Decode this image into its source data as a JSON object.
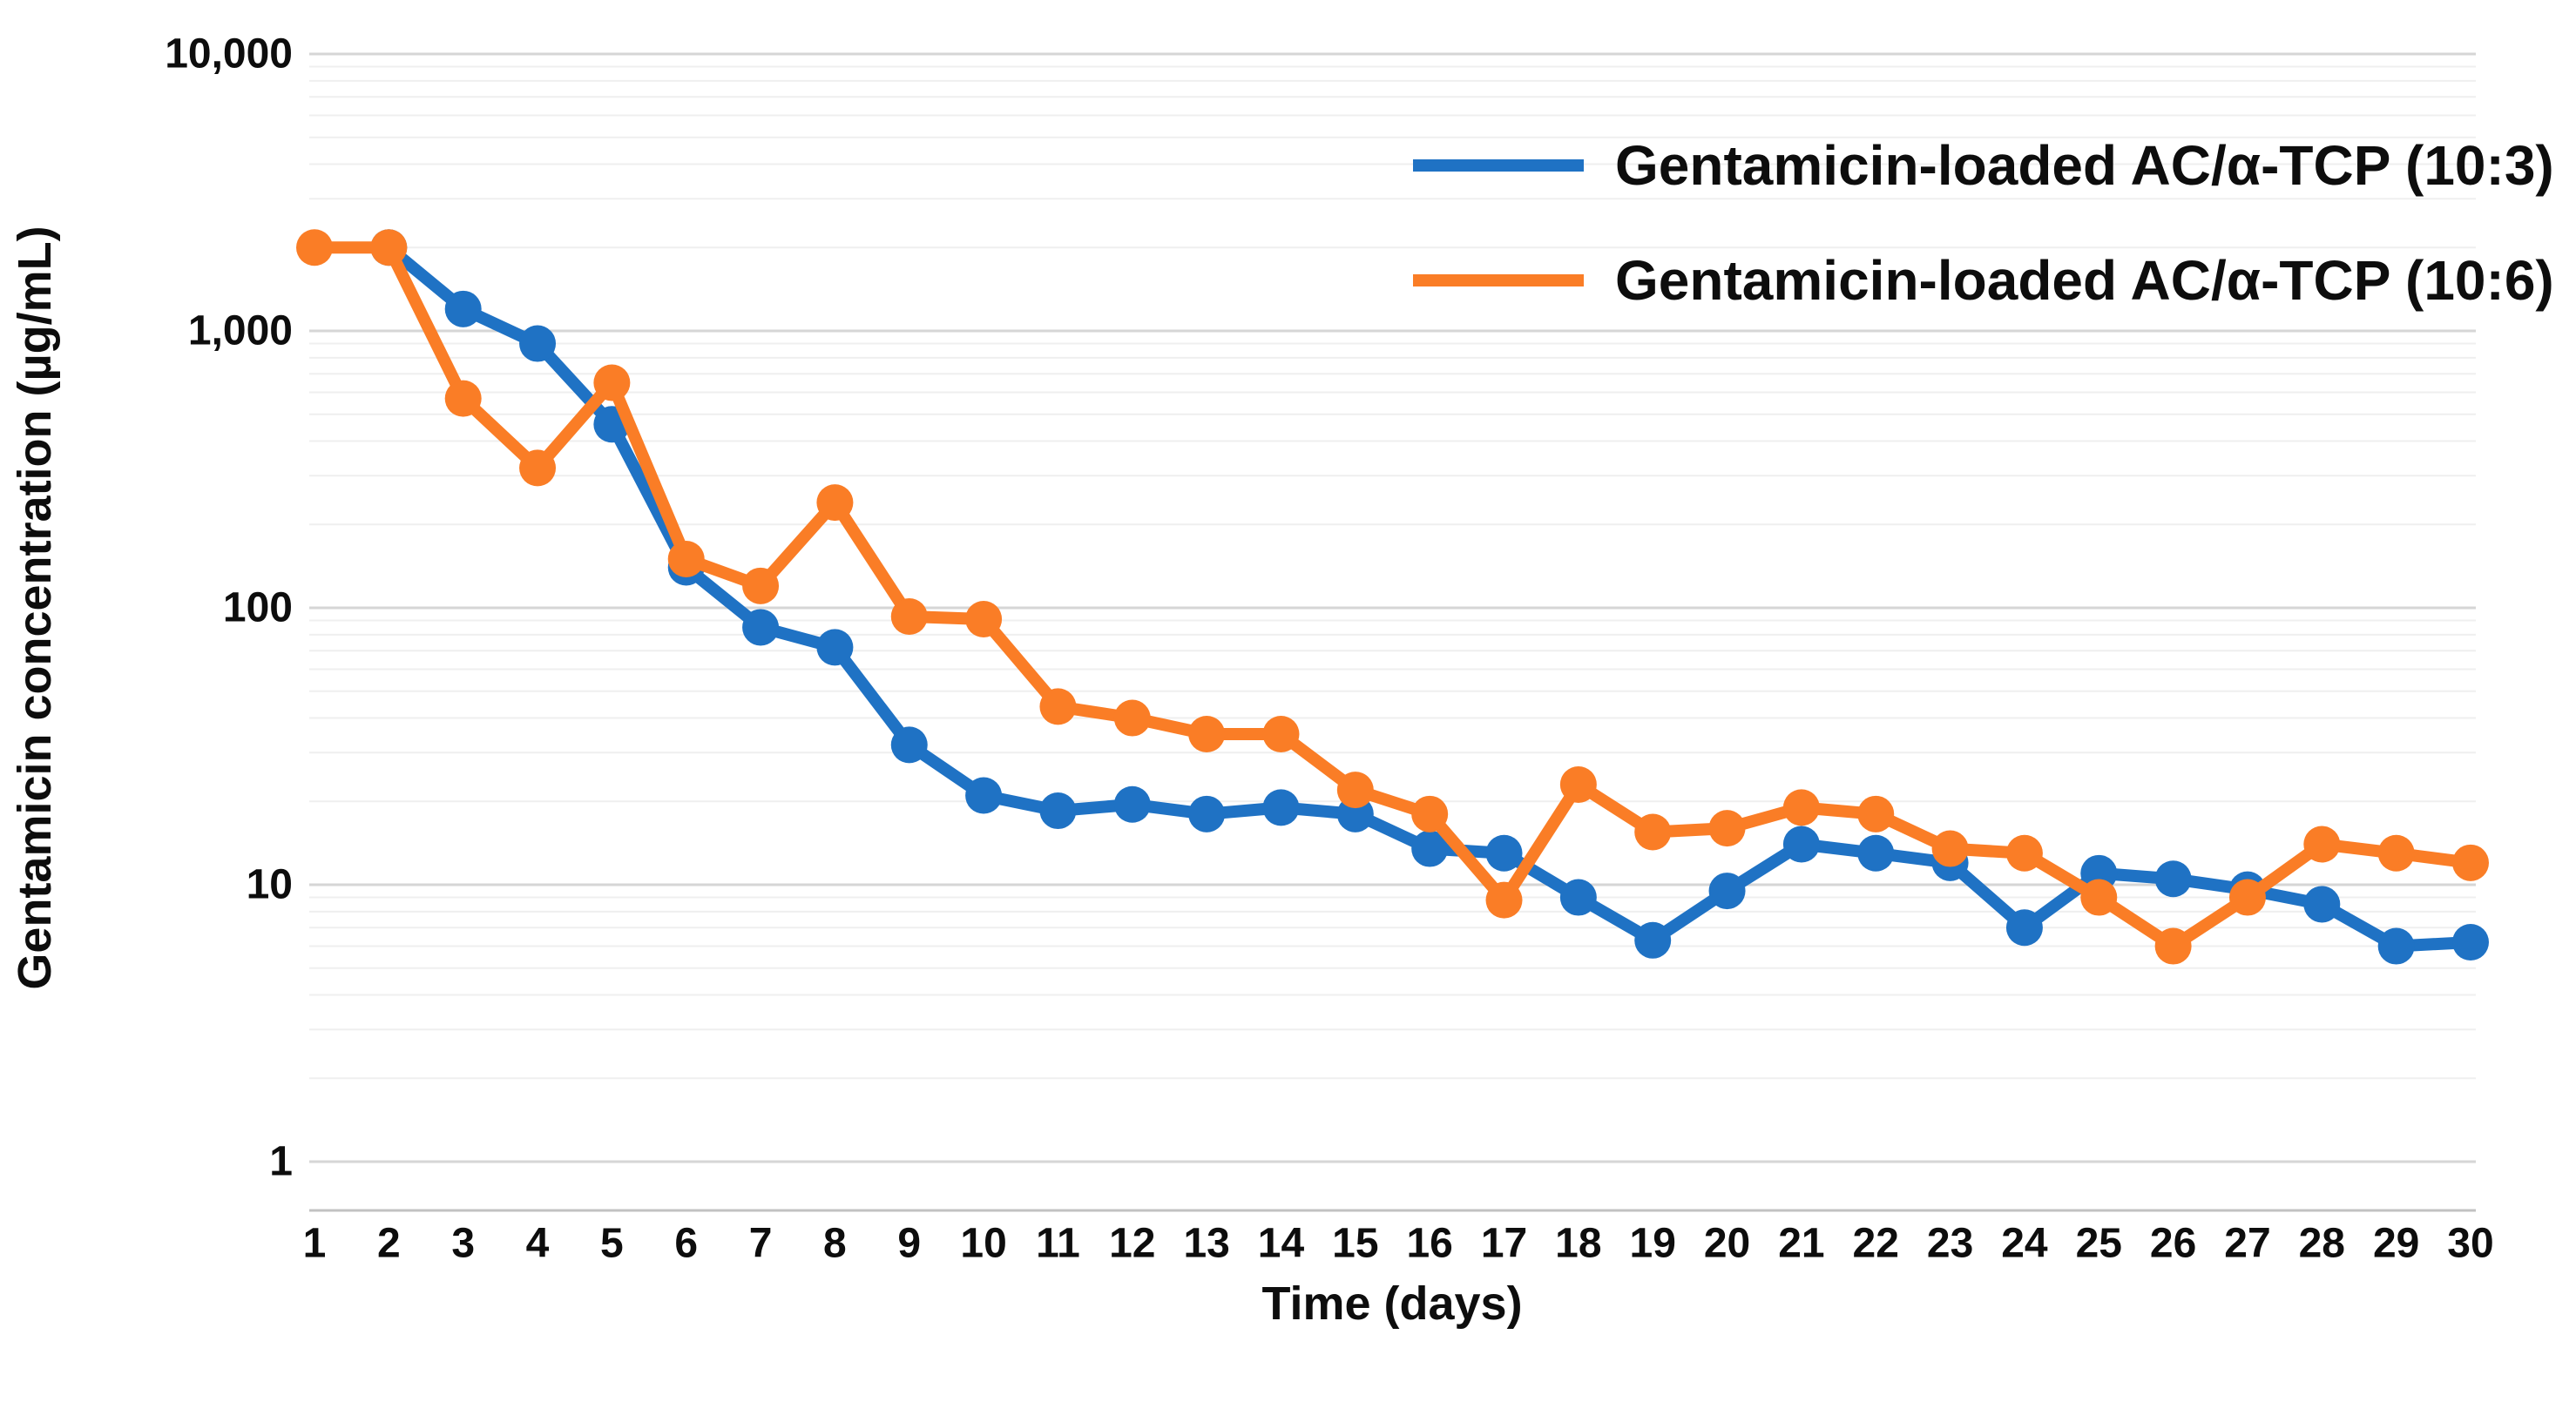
{
  "chart_data": {
    "type": "line",
    "x_scale": "linear",
    "y_scale": "log",
    "x": [
      1,
      2,
      3,
      4,
      5,
      6,
      7,
      8,
      9,
      10,
      11,
      12,
      13,
      14,
      15,
      16,
      17,
      18,
      19,
      20,
      21,
      22,
      23,
      24,
      25,
      26,
      27,
      28,
      29,
      30
    ],
    "xlabel": "Time (days)",
    "ylabel": "Gentamicin concentration (µg/mL)",
    "ylim": [
      1,
      10000
    ],
    "y_ticks": [
      {
        "value": 10000,
        "label": "10,000"
      },
      {
        "value": 1000,
        "label": "1,000"
      },
      {
        "value": 100,
        "label": "100"
      },
      {
        "value": 10,
        "label": "10"
      },
      {
        "value": 1,
        "label": "1"
      }
    ],
    "grid": {
      "major": true,
      "minor": true,
      "major_color": "#d6d6d6",
      "minor_color": "#efefef"
    },
    "legend_position": "top-right-inside",
    "series": [
      {
        "name": "Gentamicin-loaded AC/α-TCP (10:3)",
        "color": "#1f72c4",
        "marker": "circle",
        "values": [
          null,
          2000,
          1200,
          900,
          460,
          140,
          85,
          72,
          32,
          21,
          18.5,
          19.5,
          18,
          19,
          18,
          13.5,
          13,
          9,
          6.3,
          9.5,
          14,
          13,
          12,
          7,
          11,
          10.5,
          9.6,
          8.5,
          6,
          6.2
        ]
      },
      {
        "name": "Gentamicin-loaded AC/α-TCP (10:6)",
        "color": "#fa7d26",
        "marker": "circle",
        "values": [
          2000,
          2000,
          570,
          320,
          650,
          150,
          120,
          240,
          93,
          91,
          44,
          40,
          35,
          35,
          22,
          18,
          8.8,
          23,
          15.5,
          16,
          19,
          18,
          13.5,
          13,
          9,
          6,
          9,
          14,
          13,
          12
        ]
      }
    ]
  }
}
